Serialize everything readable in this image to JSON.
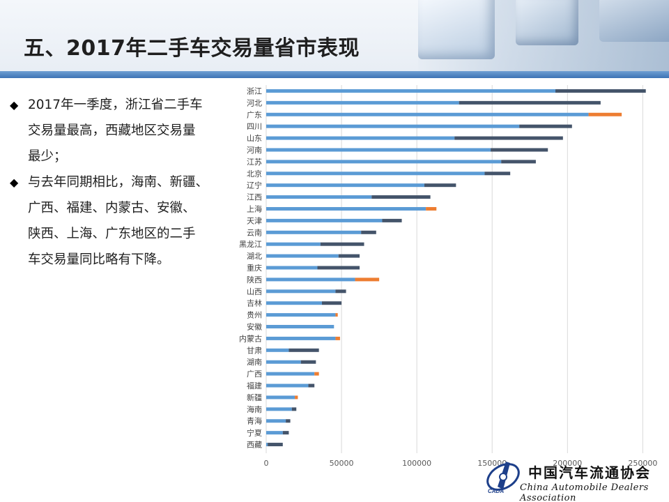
{
  "page": {
    "title": "五、2017年二手车交易量省市表现"
  },
  "bullets": [
    {
      "lines": [
        "2017年一季度，浙江省二手车",
        "交易量最高，西藏地区交易量",
        "最少；"
      ]
    },
    {
      "lines": [
        "与去年同期相比，海南、新疆、",
        "广西、福建、内蒙古、安徽、",
        "陕西、上海、广东地区的二手",
        "车交易量同比略有下降。"
      ]
    }
  ],
  "logo": {
    "name": "中国汽车流通协会",
    "english": "China Automobile Dealers Association",
    "tag": "CADA"
  },
  "colors": {
    "bar_blue": "#5b9bd5",
    "bar_dark": "#44546a",
    "bar_orange": "#ed7d31",
    "title_bar": "#3d73b4"
  },
  "chart_data": {
    "type": "bar",
    "orientation": "horizontal",
    "stacked": true,
    "categories": [
      "浙江",
      "河北",
      "广东",
      "四川",
      "山东",
      "河南",
      "江苏",
      "北京",
      "辽宁",
      "江西",
      "上海",
      "天津",
      "云南",
      "黑龙江",
      "湖北",
      "重庆",
      "陕西",
      "山西",
      "吉林",
      "贵州",
      "安徽",
      "内蒙古",
      "甘肃",
      "湖南",
      "广西",
      "福建",
      "新疆",
      "海南",
      "青海",
      "宁夏",
      "西藏"
    ],
    "series": [
      {
        "values": [
          192000,
          128000,
          214000,
          168000,
          125000,
          149000,
          156000,
          145000,
          105000,
          70000,
          106000,
          77000,
          63000,
          36000,
          48000,
          34000,
          59000,
          46000,
          37000,
          46000,
          45000,
          46000,
          15000,
          23000,
          32000,
          28000,
          19000,
          17000,
          13000,
          11000,
          1000
        ]
      },
      {
        "values": [
          60000,
          94000,
          0,
          35000,
          72000,
          38000,
          23000,
          17000,
          21000,
          39000,
          0,
          13000,
          10000,
          29000,
          14000,
          28000,
          0,
          7000,
          13000,
          0,
          0,
          0,
          20000,
          10000,
          0,
          4000,
          0,
          3000,
          3000,
          4000,
          10000
        ]
      },
      {
        "values": [
          0,
          0,
          22000,
          0,
          0,
          0,
          0,
          0,
          0,
          0,
          7000,
          0,
          0,
          0,
          0,
          0,
          16000,
          0,
          0,
          1500,
          0,
          3000,
          0,
          0,
          3000,
          0,
          2000,
          0,
          0,
          0,
          0
        ]
      }
    ],
    "xlim": [
      0,
      260000
    ],
    "xticks": [
      "0",
      "50000",
      "100000",
      "150000",
      "200000",
      "250000"
    ],
    "grid": true,
    "legend": "none"
  }
}
